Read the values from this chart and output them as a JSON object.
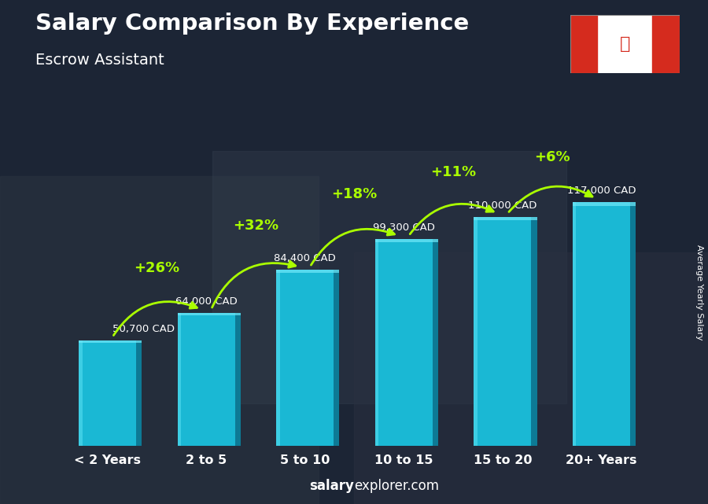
{
  "title": "Salary Comparison By Experience",
  "subtitle": "Escrow Assistant",
  "categories": [
    "< 2 Years",
    "2 to 5",
    "5 to 10",
    "10 to 15",
    "15 to 20",
    "20+ Years"
  ],
  "values": [
    50700,
    64000,
    84400,
    99300,
    110000,
    117000
  ],
  "value_labels": [
    "50,700 CAD",
    "64,000 CAD",
    "84,400 CAD",
    "99,300 CAD",
    "110,000 CAD",
    "117,000 CAD"
  ],
  "pct_labels": [
    "+26%",
    "+32%",
    "+18%",
    "+11%",
    "+6%"
  ],
  "bar_color_main": "#1ab8d4",
  "bar_color_dark": "#0d7a95",
  "bar_color_light": "#55ddf0",
  "bg_color": "#1c2a3a",
  "title_color": "#ffffff",
  "subtitle_color": "#ffffff",
  "value_label_color": "#ffffff",
  "pct_color": "#aaff00",
  "arrow_color": "#aaff00",
  "xlabel_color": "#ffffff",
  "ylabel_text": "Average Yearly Salary",
  "footer_salary": "salary",
  "footer_rest": "explorer.com",
  "ylim": [
    0,
    145000
  ],
  "figsize": [
    9.0,
    6.41
  ],
  "bar_width": 0.58
}
